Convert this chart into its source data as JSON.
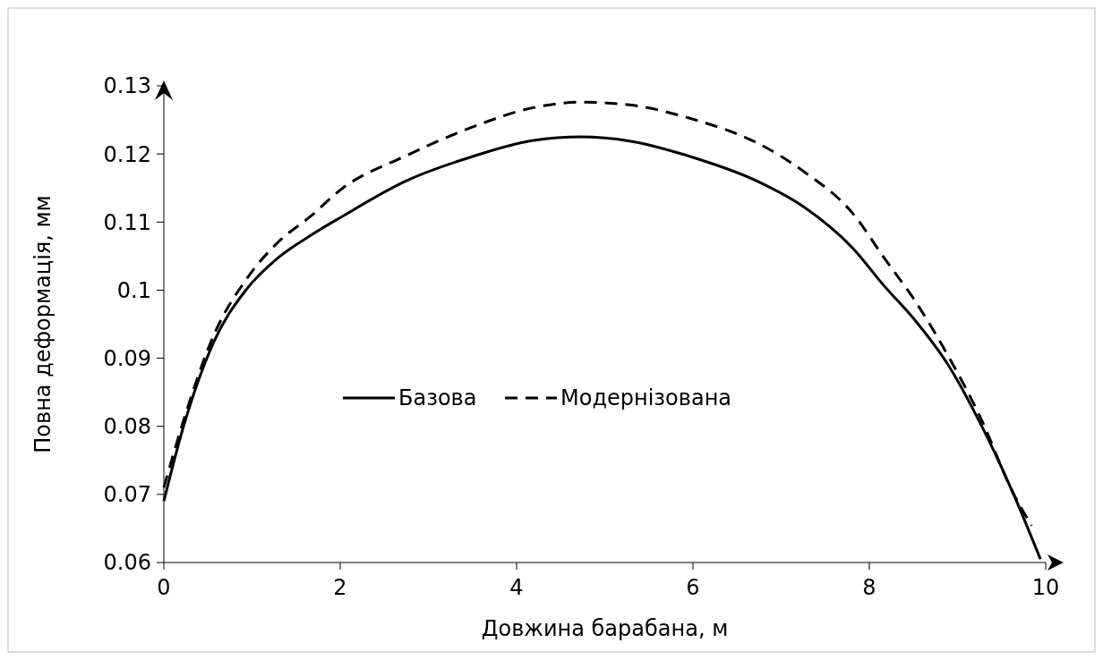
{
  "chart_data": {
    "type": "line",
    "xlabel": "Довжина барабана, м",
    "ylabel": "Повна деформація, мм",
    "xlim": [
      0,
      10
    ],
    "ylim": [
      0.06,
      0.13
    ],
    "xticks": [
      0,
      2,
      4,
      6,
      8,
      10
    ],
    "yticks": [
      {
        "value": 0.06,
        "label": "0.06"
      },
      {
        "value": 0.07,
        "label": "0.07"
      },
      {
        "value": 0.08,
        "label": "0.08"
      },
      {
        "value": 0.09,
        "label": "0.09"
      },
      {
        "value": 0.1,
        "label": "0.1"
      },
      {
        "value": 0.11,
        "label": "0.11"
      },
      {
        "value": 0.12,
        "label": "0.12"
      },
      {
        "value": 0.13,
        "label": "0.13"
      }
    ],
    "grid": false,
    "legend": "center",
    "marker": "none",
    "series": [
      {
        "name": "Базова",
        "color": "#000000",
        "line_style": "solid",
        "x": [
          0,
          0.21,
          0.57,
          0.93,
          1.3,
          1.66,
          2.02,
          2.74,
          3.47,
          4.19,
          4.73,
          5.28,
          6.0,
          6.73,
          7.26,
          7.81,
          8.17,
          8.53,
          8.9,
          9.26,
          9.62,
          9.94
        ],
        "values": [
          0.069,
          0.0794,
          0.0925,
          0.1,
          0.1048,
          0.108,
          0.1108,
          0.116,
          0.1195,
          0.122,
          0.1225,
          0.1219,
          0.1195,
          0.116,
          0.1122,
          0.1062,
          0.1006,
          0.0954,
          0.0889,
          0.0804,
          0.0705,
          0.0605
        ]
      },
      {
        "name": "Модернізована",
        "color": "#000000",
        "line_style": "dashed",
        "x": [
          0,
          0.21,
          0.57,
          0.93,
          1.3,
          1.66,
          2.02,
          2.74,
          3.47,
          4.19,
          4.73,
          5.28,
          6.0,
          6.73,
          7.26,
          7.81,
          8.17,
          8.53,
          8.9,
          9.26,
          9.62,
          9.84
        ],
        "values": [
          0.071,
          0.0803,
          0.0935,
          0.1015,
          0.1071,
          0.1108,
          0.1149,
          0.1197,
          0.1238,
          0.1268,
          0.1276,
          0.1272,
          0.1251,
          0.1216,
          0.1174,
          0.1113,
          0.1047,
          0.0982,
          0.0902,
          0.0813,
          0.0705,
          0.0654
        ]
      }
    ]
  }
}
